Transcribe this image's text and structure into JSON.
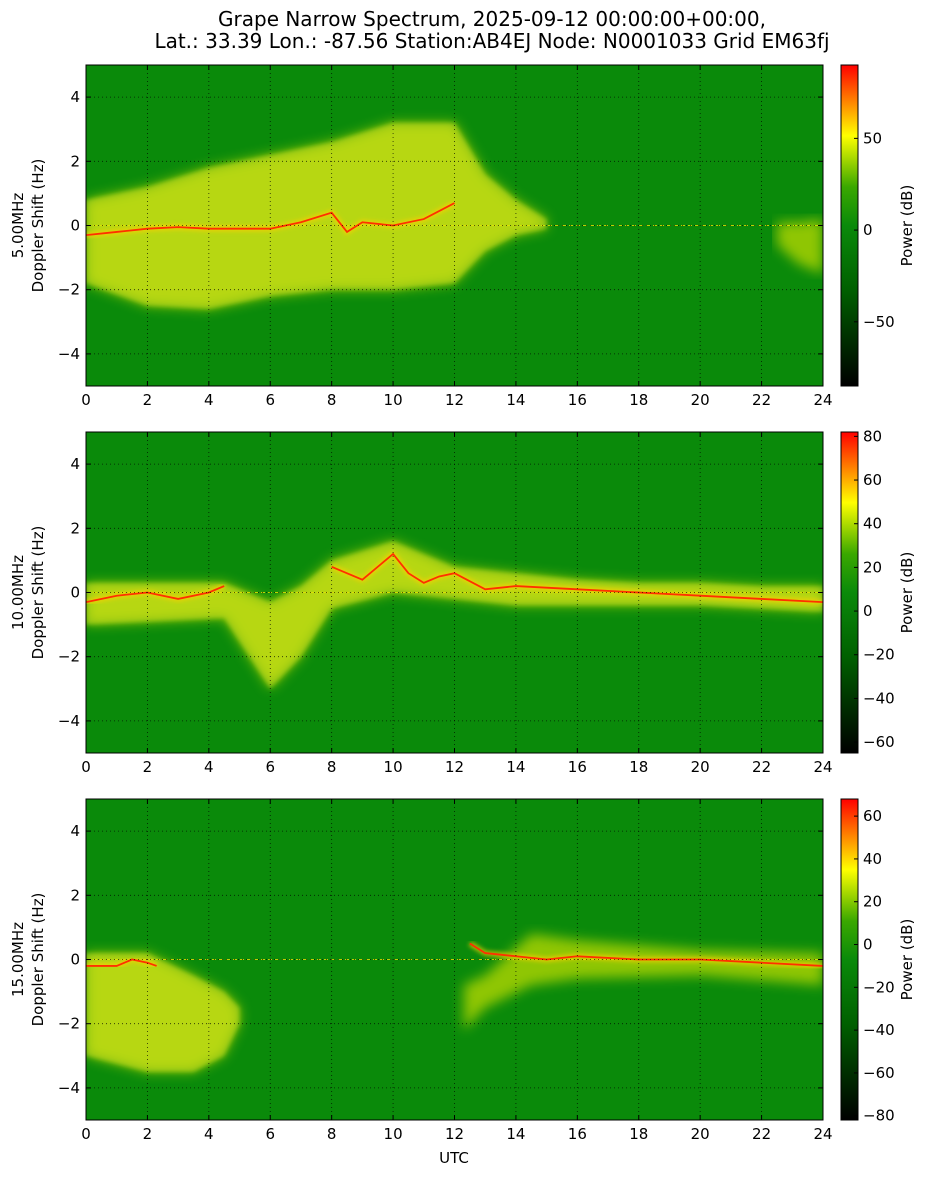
{
  "figure": {
    "title_lines": [
      "Grape Narrow Spectrum, 2025-09-12 00:00:00+00:00,",
      "Lat.: 33.39 Lon.: -87.56 Station:AB4EJ Node: N0001033 Grid EM63fj"
    ],
    "xlabel": "UTC"
  },
  "colors": {
    "background_green": "#0a8a0a",
    "colormap": [
      "#000000",
      "#006400",
      "#1e9a00",
      "#ffff00",
      "#ff0000"
    ],
    "grid": "#000000"
  },
  "chart_data": [
    {
      "type": "heatmap",
      "frequency_label": "5.00MHz",
      "ylabel": "Doppler Shift (Hz)",
      "colorbar_label": "Power (dB)",
      "x_ticks": [
        0,
        2,
        4,
        6,
        8,
        10,
        12,
        14,
        16,
        18,
        20,
        22,
        24
      ],
      "y_ticks": [
        -4,
        -2,
        0,
        2,
        4
      ],
      "xlim": [
        0,
        24
      ],
      "ylim": [
        -5,
        5
      ],
      "colorbar_ticks": [
        -50,
        0,
        50
      ],
      "colorbar_range": [
        -85,
        90
      ],
      "grid": true,
      "doppler_trace": [
        [
          0,
          -0.3
        ],
        [
          1,
          -0.2
        ],
        [
          2,
          -0.1
        ],
        [
          3,
          -0.05
        ],
        [
          4,
          -0.1
        ],
        [
          5,
          -0.1
        ],
        [
          6,
          -0.1
        ],
        [
          7,
          0.1
        ],
        [
          8,
          0.4
        ],
        [
          8.5,
          -0.2
        ],
        [
          9,
          0.1
        ],
        [
          10,
          0.0
        ],
        [
          11,
          0.2
        ],
        [
          12,
          0.7
        ]
      ],
      "diffuse_band": [
        [
          0,
          0.8,
          -1.8
        ],
        [
          2,
          1.2,
          -2.5
        ],
        [
          4,
          1.8,
          -2.6
        ],
        [
          6,
          2.2,
          -2.2
        ],
        [
          8,
          2.6,
          -2.0
        ],
        [
          10,
          3.2,
          -2.0
        ],
        [
          12,
          3.2,
          -1.8
        ],
        [
          13,
          1.6,
          -0.8
        ],
        [
          14,
          0.8,
          -0.3
        ],
        [
          15,
          0.2,
          -0.1
        ]
      ],
      "evening_band": [
        [
          22.5,
          0.1,
          -0.6
        ],
        [
          23.2,
          0.1,
          -1.2
        ],
        [
          24,
          0.2,
          -1.5
        ]
      ]
    },
    {
      "type": "heatmap",
      "frequency_label": "10.00MHz",
      "ylabel": "Doppler Shift (Hz)",
      "colorbar_label": "Power (dB)",
      "x_ticks": [
        0,
        2,
        4,
        6,
        8,
        10,
        12,
        14,
        16,
        18,
        20,
        22,
        24
      ],
      "y_ticks": [
        -4,
        -2,
        0,
        2,
        4
      ],
      "xlim": [
        0,
        24
      ],
      "ylim": [
        -5,
        5
      ],
      "colorbar_ticks": [
        -60,
        -40,
        -20,
        0,
        20,
        40,
        60,
        80
      ],
      "colorbar_range": [
        -65,
        82
      ],
      "grid": true,
      "doppler_trace": [
        [
          0,
          -0.3
        ],
        [
          1,
          -0.1
        ],
        [
          2,
          0.0
        ],
        [
          3,
          -0.2
        ],
        [
          4,
          0.0
        ],
        [
          4.5,
          0.2
        ]
      ],
      "doppler_trace_2": [
        [
          8,
          0.8
        ],
        [
          9,
          0.4
        ],
        [
          10,
          1.2
        ],
        [
          10.5,
          0.6
        ],
        [
          11,
          0.3
        ],
        [
          11.5,
          0.5
        ],
        [
          12,
          0.6
        ],
        [
          13,
          0.1
        ],
        [
          14,
          0.2
        ],
        [
          16,
          0.1
        ],
        [
          18,
          0.0
        ],
        [
          20,
          -0.1
        ],
        [
          22,
          -0.2
        ],
        [
          24,
          -0.3
        ]
      ],
      "diffuse_band": [
        [
          0,
          0.3,
          -1.0
        ],
        [
          4.5,
          0.3,
          -0.8
        ],
        [
          6,
          -0.3,
          -3.0
        ],
        [
          7,
          0.2,
          -2.0
        ],
        [
          8,
          1.0,
          -0.5
        ],
        [
          10,
          1.6,
          0.0
        ],
        [
          12,
          0.8,
          -0.2
        ],
        [
          14,
          0.6,
          -0.4
        ],
        [
          16,
          0.4,
          -0.4
        ],
        [
          18,
          0.3,
          -0.4
        ],
        [
          20,
          0.3,
          -0.4
        ],
        [
          22,
          0.2,
          -0.5
        ],
        [
          24,
          0.2,
          -0.6
        ]
      ]
    },
    {
      "type": "heatmap",
      "frequency_label": "15.00MHz",
      "ylabel": "Doppler Shift (Hz)",
      "colorbar_label": "Power (dB)",
      "x_ticks": [
        0,
        2,
        4,
        6,
        8,
        10,
        12,
        14,
        16,
        18,
        20,
        22,
        24
      ],
      "y_ticks": [
        -4,
        -2,
        0,
        2,
        4
      ],
      "xlim": [
        0,
        24
      ],
      "ylim": [
        -5,
        5
      ],
      "colorbar_ticks": [
        -80,
        -60,
        -40,
        -20,
        0,
        20,
        40,
        60
      ],
      "colorbar_range": [
        -82,
        68
      ],
      "grid": true,
      "doppler_trace": [
        [
          0,
          -0.2
        ],
        [
          1,
          -0.2
        ],
        [
          1.5,
          0.0
        ],
        [
          2,
          -0.1
        ],
        [
          2.3,
          -0.2
        ]
      ],
      "doppler_trace_2": [
        [
          12.5,
          0.5
        ],
        [
          13,
          0.2
        ],
        [
          14,
          0.1
        ],
        [
          15,
          0.0
        ],
        [
          16,
          0.1
        ],
        [
          18,
          0.0
        ],
        [
          20,
          0.0
        ],
        [
          22,
          -0.1
        ],
        [
          24,
          -0.2
        ]
      ],
      "diffuse_band": [
        [
          0,
          0.2,
          -3.0
        ],
        [
          2,
          0.2,
          -3.5
        ],
        [
          3.5,
          -0.5,
          -3.5
        ],
        [
          4.5,
          -1.0,
          -3.0
        ],
        [
          5,
          -1.5,
          -2.0
        ]
      ],
      "evening_band": [
        [
          12.3,
          -0.8,
          -2.2
        ],
        [
          13,
          -0.5,
          -1.5
        ],
        [
          14.5,
          0.8,
          -0.8
        ],
        [
          16,
          0.6,
          -0.6
        ],
        [
          20,
          0.3,
          -0.5
        ],
        [
          24,
          0.2,
          -0.8
        ]
      ]
    }
  ]
}
